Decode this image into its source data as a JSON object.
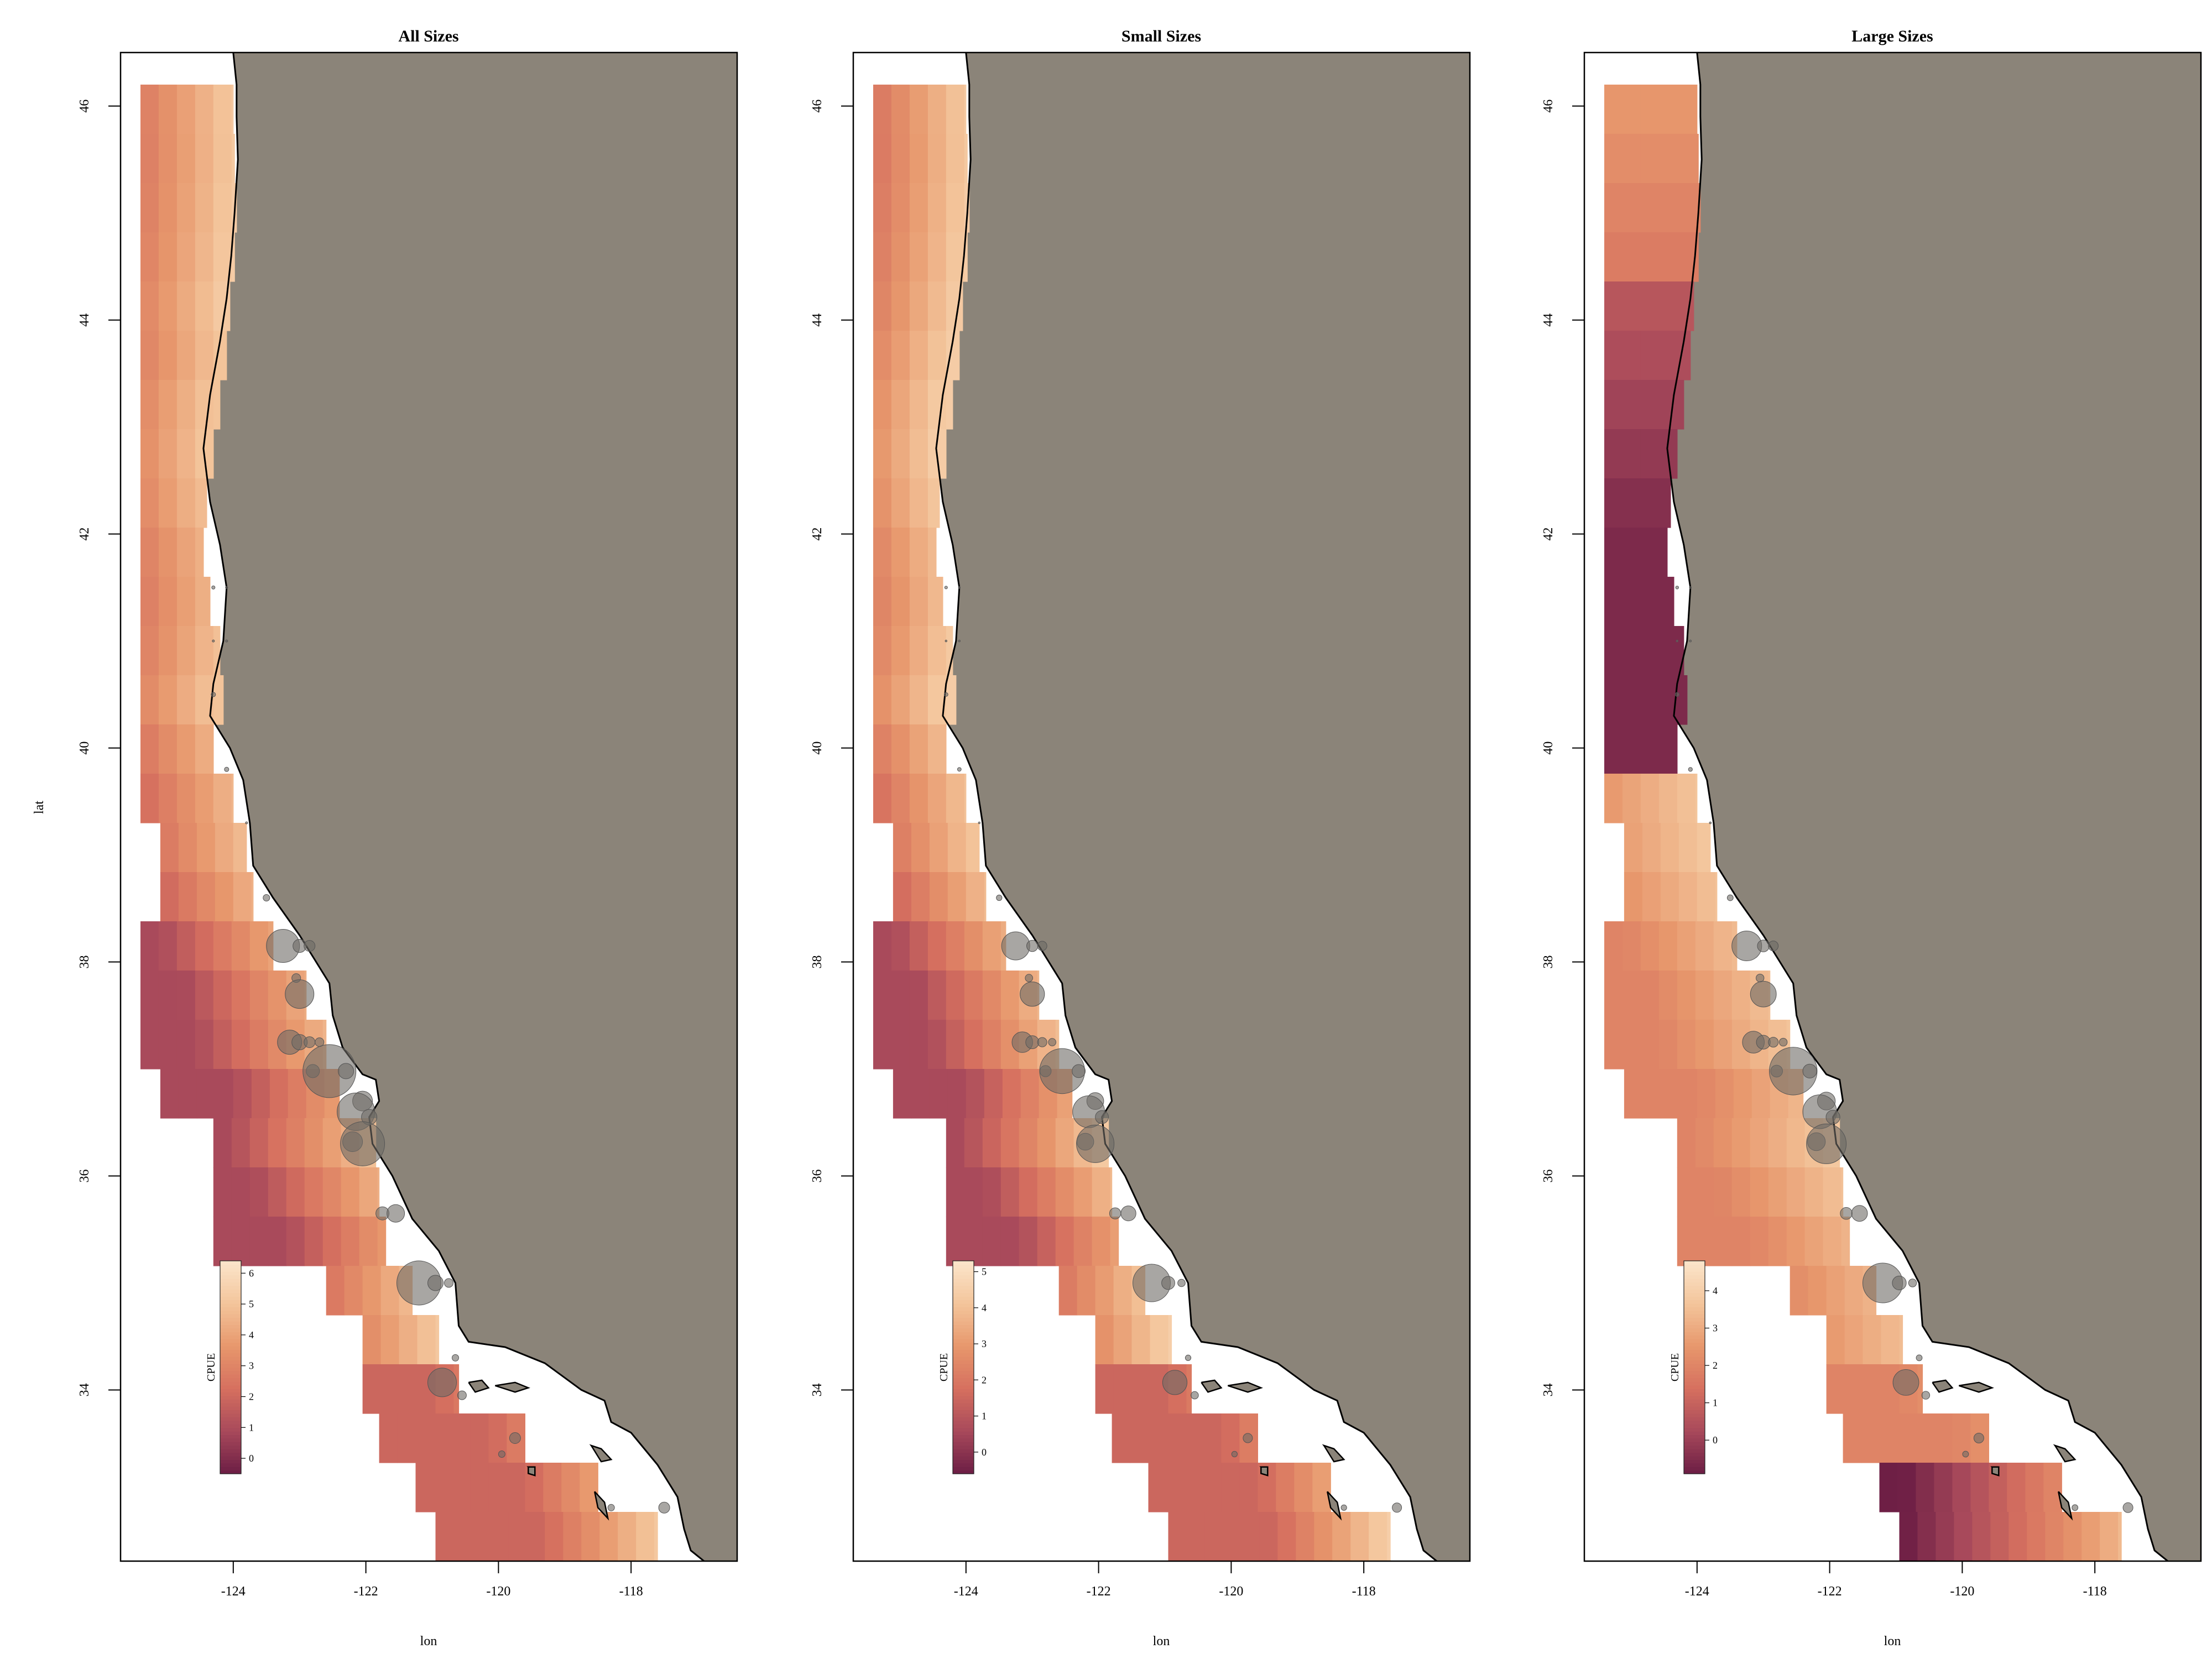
{
  "figure": {
    "ylabel": "lat",
    "colors": {
      "land": "#8b8479",
      "coast": "#000000",
      "bubble": "#6e6a66",
      "ramp": [
        "#6e1f45",
        "#a94a5b",
        "#d6705f",
        "#e7976c",
        "#f3c49a",
        "#fbe4c9"
      ]
    }
  },
  "panels": [
    {
      "title": "All Sizes",
      "xlabel": "lon",
      "x_ticks": [
        "-124",
        "-122",
        "-120",
        "-118"
      ],
      "y_ticks": [
        "34",
        "36",
        "38",
        "40",
        "42",
        "44",
        "46"
      ],
      "colorbar": {
        "title": "CPUE",
        "ticks": [
          "0",
          "1",
          "2",
          "3",
          "4",
          "5",
          "6"
        ],
        "min": -0.5,
        "max": 6.4
      },
      "field": "all"
    },
    {
      "title": "Small Sizes",
      "xlabel": "lon",
      "x_ticks": [
        "-124",
        "-122",
        "-120",
        "-118"
      ],
      "y_ticks": [
        "34",
        "36",
        "38",
        "40",
        "42",
        "44",
        "46"
      ],
      "colorbar": {
        "title": "CPUE",
        "ticks": [
          "0",
          "1",
          "2",
          "3",
          "4",
          "5"
        ],
        "min": -0.6,
        "max": 5.3
      },
      "field": "small"
    },
    {
      "title": "Large Sizes",
      "xlabel": "lon",
      "x_ticks": [
        "-124",
        "-122",
        "-120",
        "-118"
      ],
      "y_ticks": [
        "34",
        "36",
        "38",
        "40",
        "42",
        "44",
        "46"
      ],
      "colorbar": {
        "title": "CPUE",
        "ticks": [
          "0",
          "1",
          "2",
          "3",
          "4"
        ],
        "min": -0.9,
        "max": 4.8
      },
      "field": "large"
    }
  ],
  "map_data": {
    "xlim": [
      -125.7,
      -116.4
    ],
    "ylim": [
      32.4,
      46.5
    ],
    "coastline": [
      [
        -124.0,
        46.5
      ],
      [
        -123.95,
        46.2
      ],
      [
        -123.95,
        45.9
      ],
      [
        -123.93,
        45.5
      ],
      [
        -123.98,
        45.0
      ],
      [
        -124.03,
        44.6
      ],
      [
        -124.1,
        44.2
      ],
      [
        -124.2,
        43.8
      ],
      [
        -124.35,
        43.3
      ],
      [
        -124.45,
        42.8
      ],
      [
        -124.35,
        42.3
      ],
      [
        -124.2,
        41.9
      ],
      [
        -124.1,
        41.5
      ],
      [
        -124.15,
        41.0
      ],
      [
        -124.3,
        40.6
      ],
      [
        -124.35,
        40.3
      ],
      [
        -124.05,
        40.0
      ],
      [
        -123.85,
        39.7
      ],
      [
        -123.75,
        39.3
      ],
      [
        -123.7,
        38.9
      ],
      [
        -123.4,
        38.6
      ],
      [
        -123.0,
        38.25
      ],
      [
        -122.75,
        38.0
      ],
      [
        -122.55,
        37.8
      ],
      [
        -122.5,
        37.5
      ],
      [
        -122.35,
        37.2
      ],
      [
        -122.05,
        36.95
      ],
      [
        -121.85,
        36.9
      ],
      [
        -121.8,
        36.7
      ],
      [
        -121.95,
        36.55
      ],
      [
        -121.9,
        36.3
      ],
      [
        -121.6,
        36.0
      ],
      [
        -121.3,
        35.6
      ],
      [
        -120.9,
        35.3
      ],
      [
        -120.65,
        35.0
      ],
      [
        -120.6,
        34.6
      ],
      [
        -120.45,
        34.45
      ],
      [
        -119.9,
        34.4
      ],
      [
        -119.3,
        34.25
      ],
      [
        -118.75,
        34.0
      ],
      [
        -118.4,
        33.9
      ],
      [
        -118.3,
        33.7
      ],
      [
        -118.0,
        33.6
      ],
      [
        -117.6,
        33.3
      ],
      [
        -117.3,
        33.0
      ],
      [
        -117.2,
        32.7
      ],
      [
        -117.1,
        32.5
      ],
      [
        -116.9,
        32.4
      ]
    ],
    "grid": {
      "lon_start": -125.4,
      "lon_step": 0.275,
      "lat_top": 46.2,
      "lat_step": 0.46,
      "row_extents": [
        [
          -125.4,
          -124.0
        ],
        [
          -125.4,
          -123.98
        ],
        [
          -125.4,
          -123.95
        ],
        [
          -125.4,
          -123.98
        ],
        [
          -125.4,
          -124.05
        ],
        [
          -125.4,
          -124.1
        ],
        [
          -125.4,
          -124.2
        ],
        [
          -125.4,
          -124.3
        ],
        [
          -125.4,
          -124.4
        ],
        [
          -125.4,
          -124.45
        ],
        [
          -125.4,
          -124.35
        ],
        [
          -125.4,
          -124.2
        ],
        [
          -125.4,
          -124.15
        ],
        [
          -125.4,
          -124.3
        ],
        [
          -125.4,
          -124.0
        ],
        [
          -125.1,
          -123.8
        ],
        [
          -125.1,
          -123.7
        ],
        [
          -125.4,
          -123.4
        ],
        [
          -125.4,
          -122.9
        ],
        [
          -125.4,
          -122.6
        ],
        [
          -125.1,
          -122.4
        ],
        [
          -124.3,
          -121.85
        ],
        [
          -124.3,
          -121.8
        ],
        [
          -124.3,
          -121.7
        ],
        [
          -122.6,
          -121.3
        ],
        [
          -122.05,
          -120.9
        ],
        [
          -122.05,
          -120.6
        ],
        [
          -121.8,
          -119.6
        ],
        [
          -121.25,
          -118.5
        ],
        [
          -120.95,
          -117.6
        ],
        [
          -120.25,
          -117.3
        ],
        [
          -120.25,
          -117.1
        ]
      ]
    },
    "stations": [
      [
        -124.3,
        41.5,
        3
      ],
      [
        -124.1,
        41.5,
        2
      ],
      [
        -124.3,
        41.0,
        2
      ],
      [
        -124.1,
        41.0,
        2
      ],
      [
        -124.3,
        40.5,
        4
      ],
      [
        -124.1,
        39.8,
        4
      ],
      [
        -123.8,
        39.3,
        2
      ],
      [
        -123.5,
        38.6,
        6
      ],
      [
        -123.25,
        38.15,
        30
      ],
      [
        -123.0,
        38.15,
        12
      ],
      [
        -122.85,
        38.15,
        10
      ],
      [
        -123.05,
        37.85,
        8
      ],
      [
        -123.0,
        37.7,
        26
      ],
      [
        -123.15,
        37.25,
        22
      ],
      [
        -123.0,
        37.25,
        14
      ],
      [
        -122.85,
        37.25,
        10
      ],
      [
        -122.7,
        37.25,
        8
      ],
      [
        -122.8,
        36.98,
        12
      ],
      [
        -122.55,
        36.98,
        48
      ],
      [
        -122.3,
        36.98,
        14
      ],
      [
        -122.05,
        36.7,
        18
      ],
      [
        -122.15,
        36.6,
        34
      ],
      [
        -121.95,
        36.55,
        14
      ],
      [
        -122.2,
        36.32,
        18
      ],
      [
        -122.05,
        36.3,
        40
      ],
      [
        -121.75,
        35.65,
        12
      ],
      [
        -121.55,
        35.65,
        16
      ],
      [
        -121.2,
        35.0,
        40
      ],
      [
        -120.95,
        35.0,
        14
      ],
      [
        -120.75,
        35.0,
        8
      ],
      [
        -120.65,
        34.3,
        6
      ],
      [
        -120.85,
        34.07,
        26
      ],
      [
        -120.55,
        33.95,
        8
      ],
      [
        -119.75,
        33.55,
        10
      ],
      [
        -119.95,
        33.4,
        6
      ],
      [
        -118.3,
        32.9,
        6
      ],
      [
        -117.5,
        32.9,
        10
      ]
    ],
    "islands": [
      [
        [
          -120.45,
          34.07
        ],
        [
          -120.25,
          34.09
        ],
        [
          -120.15,
          34.02
        ],
        [
          -120.35,
          33.98
        ]
      ],
      [
        [
          -120.05,
          34.04
        ],
        [
          -119.75,
          34.07
        ],
        [
          -119.55,
          34.02
        ],
        [
          -119.75,
          33.98
        ]
      ],
      [
        [
          -118.6,
          33.48
        ],
        [
          -118.45,
          33.45
        ],
        [
          -118.3,
          33.35
        ],
        [
          -118.45,
          33.33
        ]
      ],
      [
        [
          -118.55,
          33.05
        ],
        [
          -118.4,
          32.95
        ],
        [
          -118.35,
          32.8
        ],
        [
          -118.5,
          32.9
        ]
      ],
      [
        [
          -119.55,
          33.28
        ],
        [
          -119.45,
          33.28
        ],
        [
          -119.45,
          33.2
        ],
        [
          -119.55,
          33.22
        ]
      ]
    ]
  }
}
